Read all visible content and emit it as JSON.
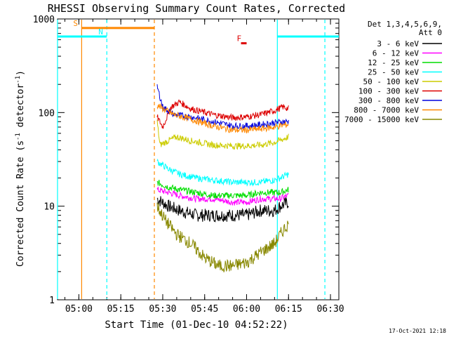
{
  "chart_data": {
    "type": "line",
    "title": "RHESSI Observing Summary Count Rates, Corrected",
    "xlabel": "Start Time (01-Dec-10 04:52:22)",
    "ylabel": "Corrected Count Rate (s",
    "ylabel_sup1": "-1",
    "ylabel_mid": " detector",
    "ylabel_sup2": "-1",
    "ylabel_end": ")",
    "yscale": "log",
    "xlim": [
      "04:52:22",
      "06:33:00"
    ],
    "ylim": [
      1,
      1000
    ],
    "x_ticks": [
      "05:00",
      "05:15",
      "05:30",
      "05:45",
      "06:00",
      "06:15",
      "06:30"
    ],
    "y_ticks": [
      "1",
      "10",
      "100",
      "1000"
    ],
    "grid": false,
    "legend": {
      "placement": "top-right-outside",
      "header1": "Det 1,3,4,5,6,9,",
      "header2": "Att 0",
      "entries": [
        {
          "name": "3 - 6 keV",
          "color": "#000000"
        },
        {
          "name": "6 - 12 keV",
          "color": "#ff00ff"
        },
        {
          "name": "12 - 25 keV",
          "color": "#00dd00"
        },
        {
          "name": "25 - 50 keV",
          "color": "#00ffff"
        },
        {
          "name": "50 - 100 keV",
          "color": "#cccc00"
        },
        {
          "name": "100 - 300 keV",
          "color": "#dd0000"
        },
        {
          "name": "300 - 800 keV",
          "color": "#0000dd"
        },
        {
          "name": "800 - 7000 keV",
          "color": "#ff8800"
        },
        {
          "name": "7000 - 15000 keV",
          "color": "#888800"
        }
      ]
    },
    "series": [
      {
        "name": "3 - 6 keV",
        "color": "#000000",
        "x": [
          "05:28",
          "05:32",
          "05:36",
          "05:42",
          "05:48",
          "05:55",
          "06:00",
          "06:05",
          "06:10",
          "06:12",
          "06:15"
        ],
        "y": [
          12,
          10,
          9,
          8,
          8,
          8,
          8,
          9,
          9,
          10,
          11
        ]
      },
      {
        "name": "6 - 12 keV",
        "color": "#ff00ff",
        "x": [
          "05:28",
          "05:32",
          "05:36",
          "05:42",
          "05:48",
          "05:55",
          "06:00",
          "06:05",
          "06:10",
          "06:12",
          "06:15"
        ],
        "y": [
          15,
          14,
          13,
          12,
          12,
          11,
          11,
          12,
          12,
          12,
          13
        ]
      },
      {
        "name": "12 - 25 keV",
        "color": "#00dd00",
        "x": [
          "05:28",
          "05:32",
          "05:36",
          "05:42",
          "05:48",
          "05:55",
          "06:00",
          "06:05",
          "06:10",
          "06:12",
          "06:15"
        ],
        "y": [
          18,
          16,
          15,
          14,
          13,
          13,
          13,
          14,
          14,
          14,
          15
        ]
      },
      {
        "name": "25 - 50 keV",
        "color": "#00ffff",
        "x": [
          "05:28",
          "05:32",
          "05:36",
          "05:42",
          "05:48",
          "05:55",
          "06:00",
          "06:05",
          "06:10",
          "06:12",
          "06:15"
        ],
        "y": [
          30,
          25,
          22,
          20,
          19,
          18,
          18,
          18,
          19,
          20,
          22
        ]
      },
      {
        "name": "50 - 100 keV",
        "color": "#cccc00",
        "x": [
          "05:28",
          "05:29",
          "05:32",
          "05:35",
          "05:40",
          "05:48",
          "05:55",
          "06:00",
          "06:05",
          "06:10",
          "06:13",
          "06:15"
        ],
        "y": [
          80,
          45,
          50,
          55,
          50,
          45,
          44,
          44,
          45,
          48,
          52,
          55
        ]
      },
      {
        "name": "100 - 300 keV",
        "color": "#dd0000",
        "x": [
          "05:28",
          "05:30",
          "05:33",
          "05:36",
          "05:40",
          "05:48",
          "05:55",
          "06:00",
          "06:05",
          "06:10",
          "06:13",
          "06:15"
        ],
        "y": [
          90,
          70,
          115,
          130,
          110,
          95,
          88,
          90,
          95,
          105,
          115,
          110
        ]
      },
      {
        "name": "300 - 800 keV",
        "color": "#0000dd",
        "x": [
          "05:28",
          "05:30",
          "05:34",
          "05:40",
          "05:48",
          "05:55",
          "06:00",
          "06:05",
          "06:10",
          "06:13",
          "06:15"
        ],
        "y": [
          190,
          115,
          95,
          90,
          80,
          72,
          72,
          74,
          78,
          80,
          80
        ]
      },
      {
        "name": "800 - 7000 keV",
        "color": "#ff8800",
        "x": [
          "05:28",
          "05:30",
          "05:34",
          "05:40",
          "05:48",
          "05:55",
          "06:00",
          "06:05",
          "06:10",
          "06:13",
          "06:15"
        ],
        "y": [
          120,
          110,
          95,
          85,
          72,
          65,
          65,
          67,
          70,
          73,
          75
        ]
      },
      {
        "name": "7000 - 15000 keV",
        "color": "#888800",
        "x": [
          "05:28",
          "05:31",
          "05:35",
          "05:40",
          "05:45",
          "05:50",
          "05:55",
          "06:00",
          "06:05",
          "06:10",
          "06:13",
          "06:15"
        ],
        "y": [
          10,
          7,
          5,
          4,
          2.8,
          2.3,
          2.3,
          2.5,
          3.2,
          4,
          5.5,
          6.5
        ]
      }
    ],
    "markers": [
      {
        "label": "S",
        "color": "#ff8800",
        "x": "05:01",
        "bar": [
          "05:01",
          "05:27"
        ],
        "y": 800
      },
      {
        "label": "N",
        "color": "#00ffff",
        "x": "05:10",
        "bar_before": [
          "04:52:22",
          "05:10"
        ],
        "bar_after": [
          "06:11",
          "06:33"
        ],
        "y": 650
      },
      {
        "label": "F",
        "color": "#dd0000",
        "x": "05:57",
        "bar": [
          "05:58",
          "06:00"
        ],
        "y": 550
      }
    ],
    "vertical_lines": [
      {
        "x": "05:01",
        "color": "#ff8800",
        "style": "solid"
      },
      {
        "x": "05:10",
        "color": "#00ffff",
        "style": "dashed"
      },
      {
        "x": "05:27",
        "color": "#ff8800",
        "style": "dashed"
      },
      {
        "x": "06:11",
        "color": "#00ffff",
        "style": "solid"
      },
      {
        "x": "06:28",
        "color": "#00ffff",
        "style": "dashed"
      },
      {
        "x": "04:52:22",
        "color": "#00ffff",
        "style": "solid"
      }
    ]
  },
  "footer": {
    "timestamp": "17-Oct-2021 12:18"
  }
}
